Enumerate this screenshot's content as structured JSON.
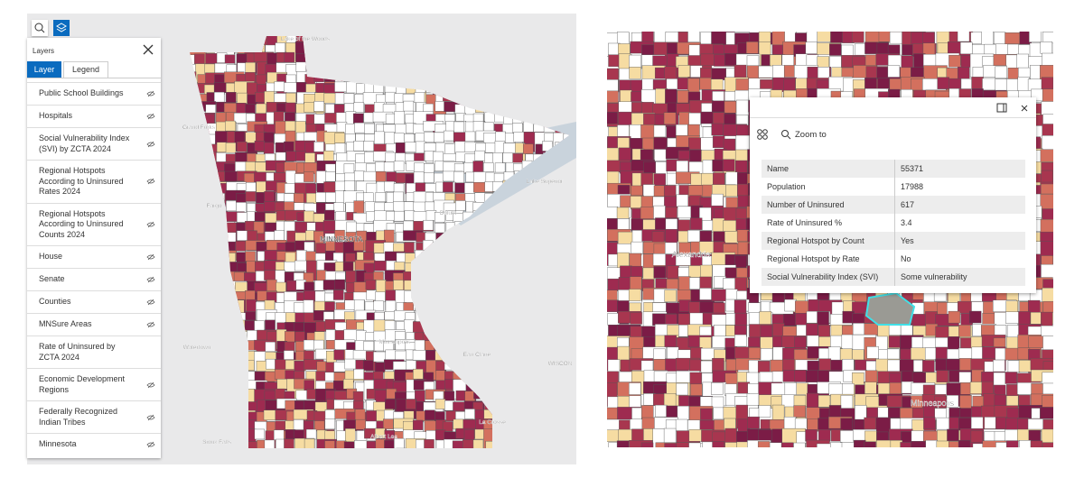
{
  "left_map": {
    "labels": [
      "Lake of the Woods",
      "Grand Forks",
      "Lake Superior",
      "Fargo",
      "Duluth",
      "MINNESOTA",
      "Watertown",
      "Minneapolis",
      "Eau Claire",
      "WISCON",
      "Sioux Falls",
      "Albert Lea",
      "La Crosse"
    ]
  },
  "layers_panel": {
    "title": "Layers",
    "tabs": [
      "Layer",
      "Legend"
    ],
    "layers": [
      {
        "name": "Public School Buildings",
        "visible": false
      },
      {
        "name": "Hospitals",
        "visible": false
      },
      {
        "name": "Social Vulnerability Index (SVI) by ZCTA 2024",
        "visible": false
      },
      {
        "name": "Regional Hotspots According to Uninsured Rates 2024",
        "visible": false
      },
      {
        "name": "Regional Hotspots According to Uninsured Counts 2024",
        "visible": false
      },
      {
        "name": "House",
        "visible": false
      },
      {
        "name": "Senate",
        "visible": false
      },
      {
        "name": "Counties",
        "visible": false
      },
      {
        "name": "MNSure Areas",
        "visible": false
      },
      {
        "name": "Rate of Uninsured by ZCTA 2024",
        "visible": true
      },
      {
        "name": "Economic Development Regions",
        "visible": false
      },
      {
        "name": "Federally Recognized Indian Tribes",
        "visible": false
      },
      {
        "name": "Minnesota",
        "visible": false
      }
    ]
  },
  "right_map": {
    "labels": [
      "Alexandria",
      "Minneapolis"
    ]
  },
  "popup": {
    "action": "Zoom to",
    "fields": [
      [
        "Name",
        "55371"
      ],
      [
        "Population",
        "17988"
      ],
      [
        "Number of Uninsured",
        "617"
      ],
      [
        "Rate of Uninsured %",
        "3.4"
      ],
      [
        "Regional Hotspot by Count",
        "Yes"
      ],
      [
        "Regional Hotspot by Rate",
        "No"
      ],
      [
        "Social Vulnerability Index (SVI)",
        "Some vulnerability"
      ]
    ]
  }
}
